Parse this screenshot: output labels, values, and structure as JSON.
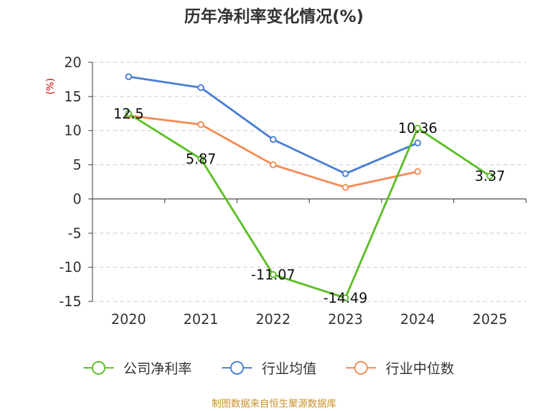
{
  "chart_data": {
    "type": "line",
    "title": "历年净利率变化情况(%)",
    "ylabel": "(%)",
    "xlabel": "",
    "categories": [
      "2020",
      "2021",
      "2022",
      "2023",
      "2024",
      "2025"
    ],
    "ylim": [
      -15,
      20
    ],
    "yticks": [
      20,
      15,
      10,
      5,
      0,
      -5,
      -10,
      -15
    ],
    "ytick_labels": [
      "20",
      "15",
      "10",
      "5",
      "0",
      "-5",
      "-10",
      "-15"
    ],
    "grid": true,
    "legend_position": "bottom",
    "series": [
      {
        "name": "公司净利率",
        "color": "#5cbf26",
        "values": [
          12.5,
          5.87,
          -11.07,
          -14.49,
          10.36,
          3.37
        ],
        "labels": [
          "12.5",
          "5.87",
          "-11.07",
          "-14.49",
          "10.36",
          "3.37"
        ]
      },
      {
        "name": "行业均值",
        "color": "#4a7fd4",
        "values": [
          17.9,
          16.3,
          8.7,
          3.7,
          8.2,
          null
        ]
      },
      {
        "name": "行业中位数",
        "color": "#f58c55",
        "values": [
          12.2,
          10.9,
          5.0,
          1.7,
          4.0,
          null
        ]
      }
    ]
  },
  "footer": {
    "source": "制图数据来自恒生聚源数据库"
  }
}
